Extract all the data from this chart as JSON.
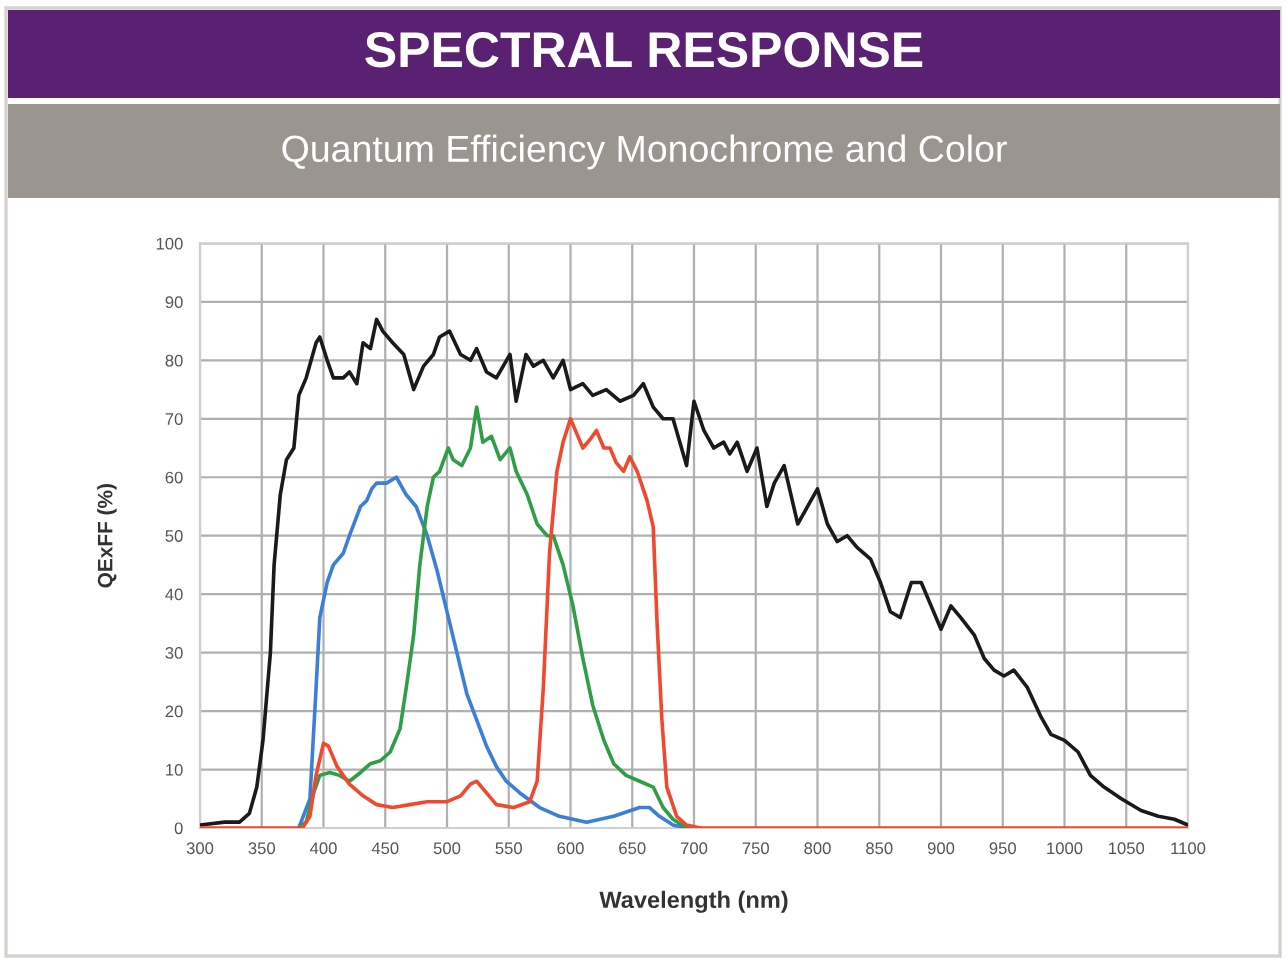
{
  "chart_data": {
    "type": "line",
    "title": "SPECTRAL RESPONSE",
    "subtitle": "Quantum Efficiency Monochrome and Color",
    "xlabel": "Wavelength (nm)",
    "ylabel": "QExFF (%)",
    "xlim": [
      300,
      1100
    ],
    "xticks": [
      300,
      350,
      400,
      450,
      500,
      550,
      600,
      650,
      700,
      750,
      800,
      850,
      900,
      950,
      1000,
      1050,
      1100
    ],
    "ylim": [
      0,
      100
    ],
    "yticks": [
      0,
      10,
      20,
      30,
      40,
      50,
      60,
      70,
      80,
      90,
      100
    ],
    "grid": true,
    "line_style": "solid",
    "series": [
      {
        "color": "#1a1a1a",
        "x": [
          300,
          320,
          332,
          340,
          346,
          351,
          357,
          360,
          365,
          370,
          376,
          380,
          386,
          394,
          397,
          403,
          408,
          416,
          421,
          427,
          432,
          438,
          443,
          448,
          456,
          465,
          473,
          481,
          489,
          494,
          502,
          511,
          519,
          524,
          532,
          540,
          551,
          556,
          564,
          570,
          578,
          586,
          594,
          600,
          610,
          618,
          629,
          640,
          651,
          659,
          667,
          675,
          683,
          694,
          700,
          708,
          716,
          724,
          729,
          735,
          743,
          751,
          759,
          765,
          773,
          784,
          792,
          800,
          808,
          816,
          824,
          832,
          843,
          851,
          859,
          867,
          876,
          884,
          892,
          900,
          908,
          916,
          927,
          935,
          943,
          951,
          959,
          970,
          981,
          989,
          1000,
          1011,
          1021,
          1032,
          1046,
          1062,
          1076,
          1089,
          1100
        ],
        "values": [
          0.5,
          1,
          1,
          2.5,
          7,
          15,
          30,
          45,
          57,
          63,
          65,
          74,
          77,
          83,
          84,
          80,
          77,
          77,
          78,
          76,
          83,
          82,
          87,
          85,
          83,
          81,
          75,
          79,
          81,
          84,
          85,
          81,
          80,
          82,
          78,
          77,
          81,
          73,
          81,
          79,
          80,
          77,
          80,
          75,
          76,
          74,
          75,
          73,
          74,
          76,
          72,
          70,
          70,
          62,
          73,
          68,
          65,
          66,
          64,
          66,
          61,
          65,
          55,
          59,
          62,
          52,
          55,
          58,
          52,
          49,
          50,
          48,
          46,
          42,
          37,
          36,
          42,
          42,
          38,
          34,
          38,
          36,
          33,
          29,
          27,
          26,
          27,
          24,
          19,
          16,
          15,
          13,
          9,
          7,
          5,
          3,
          2,
          1.5,
          0.5
        ]
      },
      {
        "color": "#3c7fd6",
        "x": [
          380,
          389,
          394,
          397,
          403,
          408,
          416,
          421,
          430,
          435,
          439,
          443,
          451,
          459,
          467,
          475,
          484,
          492,
          500,
          508,
          516,
          524,
          532,
          540,
          548,
          559,
          575,
          591,
          613,
          635,
          656,
          664,
          672,
          683,
          694,
          705
        ],
        "values": [
          0,
          5,
          24,
          36,
          42,
          45,
          47,
          50,
          55,
          56,
          58,
          59,
          59,
          60,
          57,
          55,
          50,
          44,
          37,
          30,
          23,
          18.5,
          14,
          10.5,
          8,
          6,
          3.5,
          2,
          1,
          2,
          3.5,
          3.5,
          2,
          0.5,
          0,
          0
        ]
      },
      {
        "color": "#2f9e46",
        "x": [
          380,
          386,
          392,
          397,
          405,
          413,
          421,
          430,
          438,
          446,
          454,
          462,
          467,
          473,
          478,
          484,
          489,
          494,
          501,
          505,
          512,
          519,
          524,
          529,
          536,
          543,
          551,
          556,
          565,
          573,
          581,
          586,
          594,
          602,
          610,
          618,
          627,
          635,
          645,
          656,
          667,
          675,
          683,
          694,
          705
        ],
        "values": [
          0,
          1,
          6,
          9,
          9.5,
          9,
          8,
          9.5,
          11,
          11.5,
          13,
          17,
          24,
          33,
          45,
          55,
          60,
          61,
          65,
          63,
          62,
          65,
          72,
          66,
          67,
          63,
          65,
          61,
          57,
          52,
          50,
          50,
          45,
          38,
          29,
          21,
          15,
          11,
          9,
          8,
          7,
          3.5,
          1.5,
          0,
          0
        ]
      },
      {
        "color": "#f04a2e",
        "x": [
          300,
          383,
          389,
          394,
          400,
          404,
          411,
          421,
          432,
          443,
          456,
          470,
          484,
          500,
          511,
          519,
          524,
          532,
          540,
          554,
          567,
          573,
          578,
          583,
          589,
          594,
          600,
          605,
          610,
          616,
          621,
          627,
          632,
          637,
          643,
          648,
          654,
          662,
          667,
          670,
          674,
          678,
          686,
          694,
          705,
          1100
        ],
        "values": [
          0,
          0,
          2,
          9,
          14.5,
          14,
          10.5,
          7.5,
          5.5,
          4,
          3.5,
          4,
          4.5,
          4.5,
          5.5,
          7.5,
          8,
          6,
          4,
          3.5,
          4.5,
          8,
          24,
          47,
          61,
          66,
          70,
          67.5,
          65,
          66.5,
          68,
          65,
          65,
          62.5,
          61,
          63.5,
          61,
          56,
          51.5,
          35.5,
          18.5,
          7,
          2,
          0.5,
          0,
          0
        ]
      }
    ]
  }
}
